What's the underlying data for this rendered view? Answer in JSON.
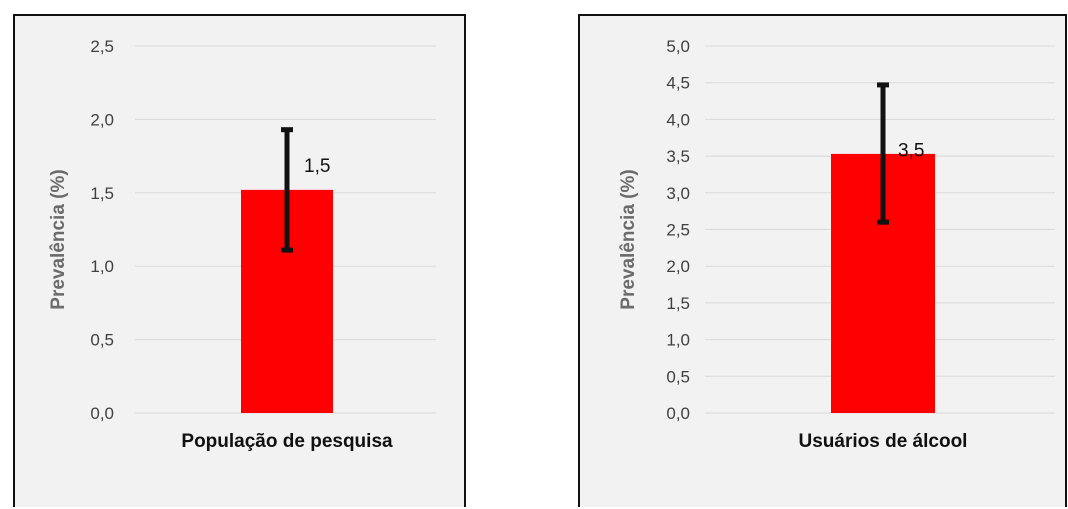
{
  "chart_data": [
    {
      "type": "bar",
      "categories": [
        "População de pesquisa"
      ],
      "values": [
        1.52
      ],
      "error_bars": [
        {
          "low": 1.11,
          "high": 1.93
        }
      ],
      "data_labels": [
        "1,5"
      ],
      "ylabel": "Prevalência (%)",
      "xlabel": "",
      "ylim": [
        0,
        2.5
      ],
      "yticks": [
        "0,0",
        "0,5",
        "1,0",
        "1,5",
        "2,0",
        "2,5"
      ],
      "grid": true,
      "legend": "none",
      "bar_color": "#ff0000"
    },
    {
      "type": "bar",
      "categories": [
        "Usuários de álcool"
      ],
      "values": [
        3.53
      ],
      "error_bars": [
        {
          "low": 2.6,
          "high": 4.47
        }
      ],
      "data_labels": [
        "3,5"
      ],
      "ylabel": "Prevalência (%)",
      "xlabel": "",
      "ylim": [
        0,
        5
      ],
      "yticks": [
        "0,0",
        "0,5",
        "1,0",
        "1,5",
        "2,0",
        "2,5",
        "3,0",
        "3,5",
        "4,0",
        "4,5",
        "5,0"
      ],
      "grid": true,
      "legend": "none",
      "bar_color": "#ff0000"
    }
  ]
}
